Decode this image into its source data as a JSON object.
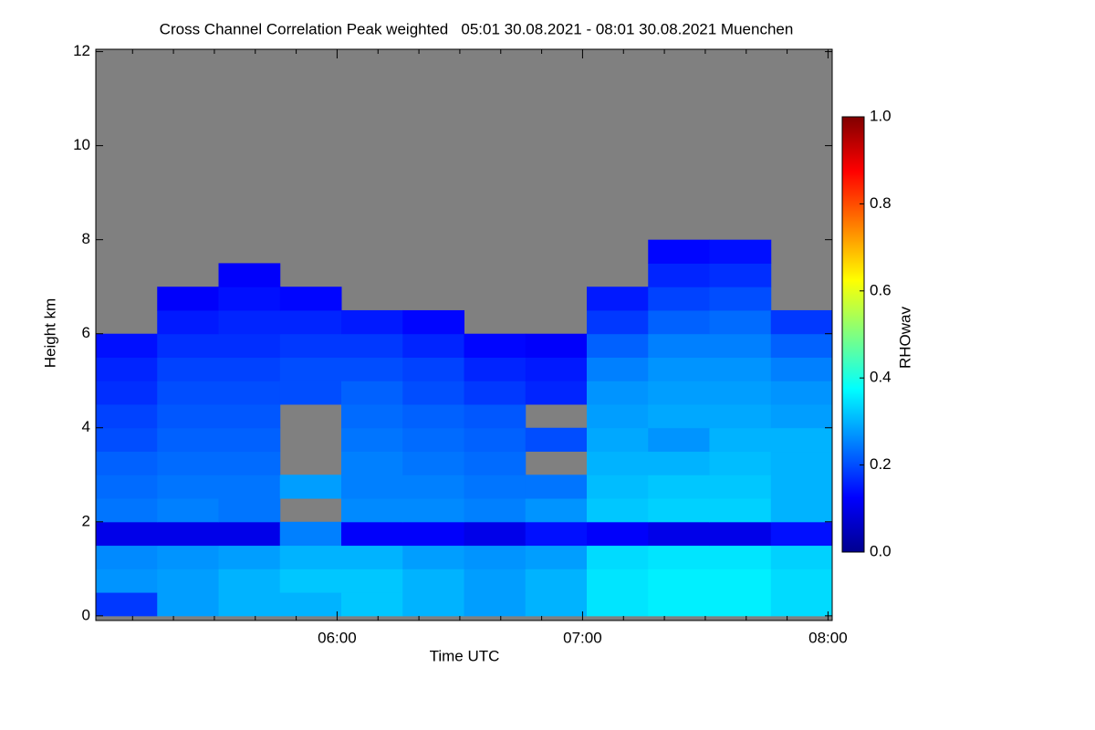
{
  "chart_data": {
    "type": "heatmap",
    "title": "Cross Channel Correlation Peak weighted   05:01 30.08.2021 - 08:01 30.08.2021 Muenchen",
    "xlabel": "Time UTC",
    "ylabel": "Height km",
    "colorbar_label": "RHOwav",
    "colormap": "jet",
    "nan_color": "#808080",
    "clim": [
      0,
      1
    ],
    "cticks": [
      {
        "value": 0,
        "label": "0.0"
      },
      {
        "value": 0.2,
        "label": "0.2"
      },
      {
        "value": 0.4,
        "label": "0.4"
      },
      {
        "value": 0.6,
        "label": "0.6"
      },
      {
        "value": 0.8,
        "label": "0.8"
      },
      {
        "value": 1,
        "label": "1.0"
      }
    ],
    "xlim": [
      5.017,
      8.017
    ],
    "xticks": [
      {
        "value": 6,
        "label": "06:00"
      },
      {
        "value": 7,
        "label": "07:00"
      },
      {
        "value": 8,
        "label": "08:00"
      }
    ],
    "xminorticks": [
      5.1667,
      5.3333,
      5.5,
      5.6667,
      5.8333,
      6.1667,
      6.3333,
      6.5,
      6.6667,
      6.8333,
      7.1667,
      7.3333,
      7.5,
      7.6667,
      7.8333
    ],
    "ylim": [
      -0.1,
      12.05
    ],
    "yticks": [
      0,
      2,
      4,
      6,
      8,
      10,
      12
    ],
    "x_bins": [
      5.017,
      5.267,
      5.517,
      5.767,
      6.017,
      6.267,
      6.517,
      6.767,
      7.017,
      7.267,
      7.517,
      7.767,
      8.017
    ],
    "y_bins": [
      0,
      0.5,
      1,
      1.5,
      2,
      2.5,
      3,
      3.5,
      4,
      4.5,
      5,
      5.5,
      6,
      6.5,
      7,
      7.5,
      8,
      8.5,
      9,
      9.5,
      10,
      10.5,
      11,
      11.5,
      12
    ],
    "z": [
      [
        0.18,
        0.28,
        0.3,
        0.3,
        0.32,
        0.3,
        0.28,
        0.3,
        0.35,
        0.36,
        0.36,
        0.34
      ],
      [
        0.27,
        0.28,
        0.3,
        0.32,
        0.32,
        0.3,
        0.28,
        0.3,
        0.35,
        0.36,
        0.36,
        0.34
      ],
      [
        0.26,
        0.27,
        0.28,
        0.3,
        0.3,
        0.28,
        0.27,
        0.28,
        0.34,
        0.35,
        0.35,
        0.33
      ],
      [
        0.1,
        0.1,
        0.1,
        0.25,
        0.12,
        0.12,
        0.1,
        0.14,
        0.12,
        0.1,
        0.1,
        0.14
      ],
      [
        0.24,
        0.25,
        0.24,
        null,
        0.26,
        0.26,
        0.25,
        0.27,
        0.32,
        0.33,
        0.33,
        0.3
      ],
      [
        0.23,
        0.24,
        0.24,
        0.28,
        0.25,
        0.25,
        0.24,
        0.24,
        0.31,
        0.32,
        0.32,
        0.3
      ],
      [
        0.22,
        0.23,
        0.23,
        null,
        0.25,
        0.24,
        0.23,
        null,
        0.3,
        0.3,
        0.31,
        0.3
      ],
      [
        0.2,
        0.22,
        0.22,
        null,
        0.24,
        0.23,
        0.22,
        0.2,
        0.29,
        0.27,
        0.3,
        0.3
      ],
      [
        0.19,
        0.21,
        0.21,
        null,
        0.23,
        0.22,
        0.21,
        null,
        0.28,
        0.29,
        0.29,
        0.28
      ],
      [
        0.17,
        0.2,
        0.2,
        0.2,
        0.22,
        0.2,
        0.18,
        0.16,
        0.27,
        0.28,
        0.28,
        0.27
      ],
      [
        0.16,
        0.19,
        0.19,
        0.2,
        0.2,
        0.19,
        0.16,
        0.15,
        0.25,
        0.27,
        0.27,
        0.25
      ],
      [
        0.14,
        0.17,
        0.17,
        0.18,
        0.18,
        0.16,
        0.13,
        0.12,
        0.22,
        0.25,
        0.25,
        0.22
      ],
      [
        null,
        0.15,
        0.16,
        0.16,
        0.15,
        0.13,
        null,
        null,
        0.18,
        0.22,
        0.23,
        0.18
      ],
      [
        null,
        0.12,
        0.14,
        0.13,
        null,
        null,
        null,
        null,
        0.15,
        0.19,
        0.2,
        null
      ],
      [
        null,
        null,
        0.12,
        null,
        null,
        null,
        null,
        null,
        null,
        0.16,
        0.17,
        null
      ],
      [
        null,
        null,
        null,
        null,
        null,
        null,
        null,
        null,
        null,
        0.13,
        0.14,
        null
      ],
      [
        null,
        null,
        null,
        null,
        null,
        null,
        null,
        null,
        null,
        null,
        null,
        null
      ],
      [
        null,
        null,
        null,
        null,
        null,
        null,
        null,
        null,
        null,
        null,
        null,
        null
      ],
      [
        null,
        null,
        null,
        null,
        null,
        null,
        null,
        null,
        null,
        null,
        null,
        null
      ],
      [
        null,
        null,
        null,
        null,
        null,
        null,
        null,
        null,
        null,
        null,
        null,
        null
      ],
      [
        null,
        null,
        null,
        null,
        null,
        null,
        null,
        null,
        null,
        null,
        null,
        null
      ],
      [
        null,
        null,
        null,
        null,
        null,
        null,
        null,
        null,
        null,
        null,
        null,
        null
      ],
      [
        null,
        null,
        null,
        null,
        null,
        null,
        null,
        null,
        null,
        null,
        null,
        null
      ],
      [
        null,
        null,
        null,
        null,
        null,
        null,
        null,
        null,
        null,
        null,
        null,
        null
      ]
    ]
  }
}
